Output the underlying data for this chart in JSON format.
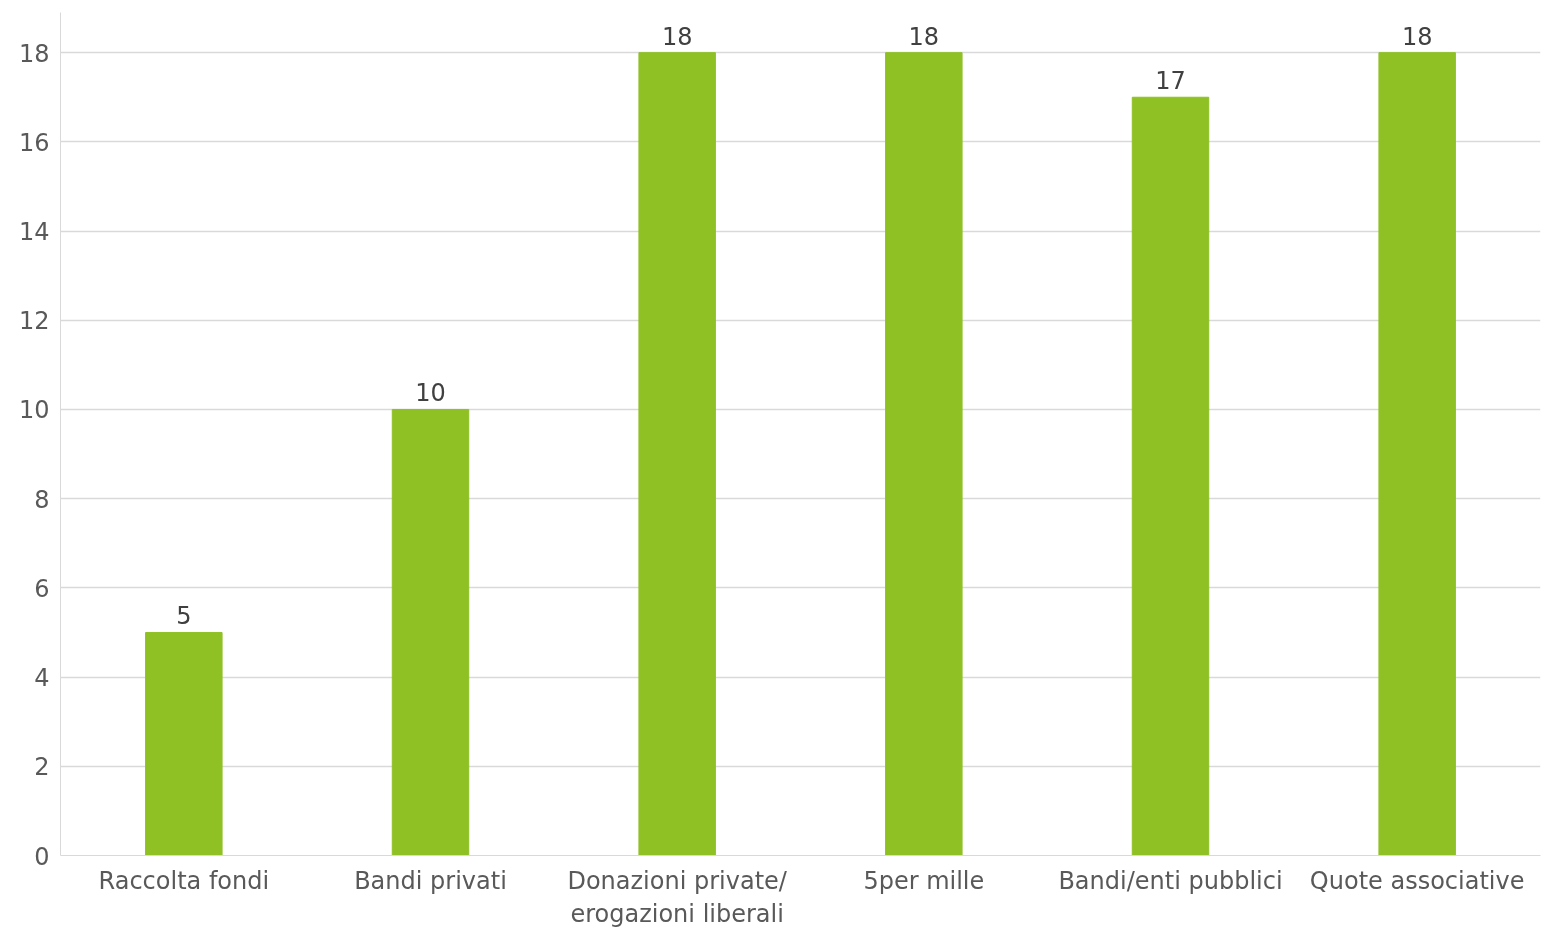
{
  "chart_data": {
    "type": "bar",
    "categories": [
      "Raccolta fondi",
      "Bandi privati",
      "Donazioni private/ erogazioni liberali",
      "5per mille",
      "Bandi/enti pubblici",
      "Quote associative"
    ],
    "values": [
      5,
      10,
      18,
      18,
      17,
      18
    ],
    "color": "#8fc125",
    "ylim": [
      0,
      18.9
    ],
    "yticks": [
      0,
      2,
      4,
      6,
      8,
      10,
      12,
      14,
      16,
      18
    ],
    "grid": "y",
    "data_labels": true
  }
}
